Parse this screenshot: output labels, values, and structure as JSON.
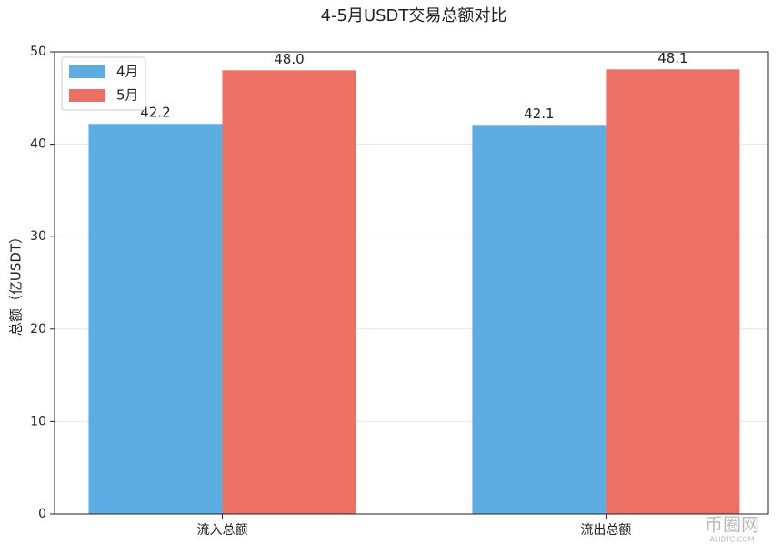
{
  "chart_data": {
    "type": "bar",
    "title": "4-5月USDT交易总额对比",
    "y_label": "总额（亿USDT）",
    "categories": [
      "流入总额",
      "流出总额"
    ],
    "series": [
      {
        "name": "4月",
        "color": "#5dade2",
        "values": [
          42.2,
          42.1
        ],
        "value_labels": [
          "42.2",
          "42.1"
        ]
      },
      {
        "name": "5月",
        "color": "#ec7063",
        "values": [
          48.0,
          48.1
        ],
        "value_labels": [
          "48.0",
          "48.1"
        ]
      }
    ],
    "ylim": [
      0,
      50
    ],
    "yticks": [
      0,
      10,
      20,
      30,
      40,
      50
    ],
    "grid": true,
    "legend": "upper left",
    "watermark": "币圈网",
    "watermark_sub": "ALIBTC.COM"
  }
}
